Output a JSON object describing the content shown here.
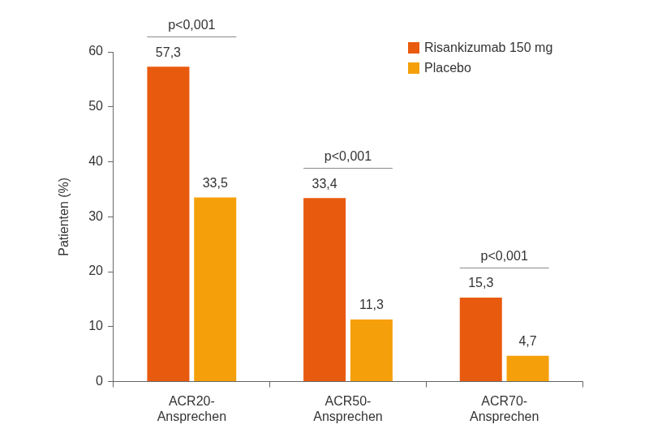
{
  "chart_data": {
    "type": "bar",
    "y_label": "Patienten (%)",
    "categories": [
      [
        "ACR20-",
        "Ansprechen"
      ],
      [
        "ACR50-",
        "Ansprechen"
      ],
      [
        "ACR70-",
        "Ansprechen"
      ]
    ],
    "series": [
      {
        "name": "Risankizumab 150 mg",
        "color": "#e85a0e",
        "values": [
          57.3,
          33.4,
          15.3
        ],
        "value_labels": [
          "57,3",
          "33,4",
          "15,3"
        ]
      },
      {
        "name": "Placebo",
        "color": "#f5a00a",
        "values": [
          33.5,
          11.3,
          4.7
        ],
        "value_labels": [
          "33,5",
          "11,3",
          "4,7"
        ]
      }
    ],
    "annotations": [
      "p<0,001",
      "p<0,001",
      "p<0,001"
    ],
    "ylim": [
      0,
      60
    ],
    "yticks": [
      0,
      10,
      20,
      30,
      40,
      50,
      60
    ],
    "grid": false,
    "legend": "top-right",
    "data_labels": true
  }
}
